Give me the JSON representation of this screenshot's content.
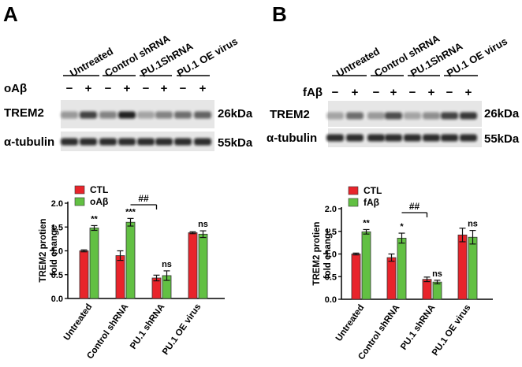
{
  "panels": [
    {
      "letter": "A",
      "groups": [
        "Untreated",
        "Control shRNA",
        "PU.1ShRNA",
        "PU.1 OE virus"
      ],
      "treatment_label": "oAβ",
      "lane_signs": [
        "−",
        "+",
        "−",
        "+",
        "−",
        "+",
        "−",
        "+"
      ],
      "blot_rows": [
        {
          "name": "TREM2",
          "size": "26kDa",
          "intensity": [
            0.35,
            0.75,
            0.45,
            0.9,
            0.3,
            0.45,
            0.55,
            0.6
          ]
        },
        {
          "name": "α-tubulin",
          "size": "55kDa",
          "intensity": [
            0.85,
            0.85,
            0.85,
            0.85,
            0.85,
            0.85,
            0.85,
            0.85
          ]
        }
      ]
    },
    {
      "letter": "B",
      "groups": [
        "Untreated",
        "Control shRNA",
        "PU.1ShRNA",
        "PU.1 OE virus"
      ],
      "treatment_label": "fAβ",
      "lane_signs": [
        "−",
        "+",
        "−",
        "+",
        "−",
        "+",
        "−",
        "+"
      ],
      "blot_rows": [
        {
          "name": "TREM2",
          "size": "26kDa",
          "intensity": [
            0.3,
            0.55,
            0.35,
            0.7,
            0.3,
            0.4,
            0.75,
            0.8
          ]
        },
        {
          "name": "α-tubulin",
          "size": "55kDa",
          "intensity": [
            0.85,
            0.85,
            0.85,
            0.85,
            0.85,
            0.85,
            0.85,
            0.85
          ]
        }
      ]
    }
  ],
  "colors": {
    "ctl": "#e8242b",
    "treated": "#62c043",
    "bar_edge": "#333333"
  },
  "chart_data": [
    {
      "type": "bar",
      "categories": [
        "Untreated",
        "Control shRNA",
        "PU.1 shRNA",
        "PU.1 OE virus"
      ],
      "series": [
        {
          "name": "CTL",
          "values": [
            1.0,
            0.9,
            0.43,
            1.38
          ],
          "errors": [
            0.02,
            0.1,
            0.06,
            0.02
          ]
        },
        {
          "name": "oAβ",
          "values": [
            1.48,
            1.6,
            0.48,
            1.35
          ],
          "errors": [
            0.05,
            0.08,
            0.1,
            0.07
          ]
        }
      ],
      "significance": [
        "**",
        "***",
        "ns",
        "ns"
      ],
      "bracket": {
        "label": "##",
        "from": "Control shRNA",
        "to": "PU.1 shRNA"
      },
      "ylabel": "TREM2 protien fold change",
      "ylabel_lines": [
        "TREM2 protien",
        "fold change"
      ],
      "ylim": [
        0,
        2.0
      ],
      "yticks": [
        "0.0",
        "0.5",
        "1.0",
        "1.5",
        "2.0"
      ],
      "grid": false,
      "legend": "top-left"
    },
    {
      "type": "bar",
      "categories": [
        "Untreated",
        "Control shRNA",
        "PU.1 shRNA",
        "PU.1 OE virus"
      ],
      "series": [
        {
          "name": "CTL",
          "values": [
            1.0,
            0.92,
            0.44,
            1.42
          ],
          "errors": [
            0.02,
            0.08,
            0.05,
            0.15
          ]
        },
        {
          "name": "fAβ",
          "values": [
            1.49,
            1.35,
            0.38,
            1.37
          ],
          "errors": [
            0.05,
            0.11,
            0.04,
            0.15
          ]
        }
      ],
      "significance": [
        "**",
        "*",
        "ns",
        "ns"
      ],
      "bracket": {
        "label": "##",
        "from": "Control shRNA",
        "to": "PU.1 shRNA"
      },
      "ylabel": "TREM2 protien fold change",
      "ylabel_lines": [
        "TREM2 protien",
        "fold change"
      ],
      "ylim": [
        0,
        2.0
      ],
      "yticks": [
        "0.0",
        "0.5",
        "1.0",
        "1.5",
        "2.0"
      ],
      "grid": false,
      "legend": "top-left"
    }
  ]
}
